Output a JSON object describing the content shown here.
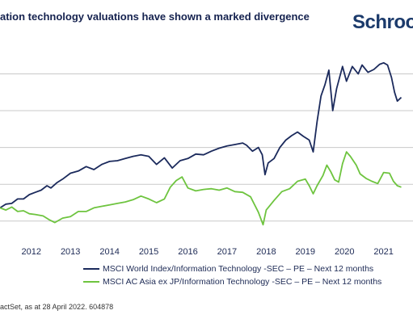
{
  "header": {
    "title": "ation technology valuations have shown a marked divergence",
    "logo_text": "Schroo"
  },
  "source": "actSet, as at 28 April 2022. 604878",
  "colors": {
    "series_world": "#1b2a5c",
    "series_asia": "#6ec43f",
    "grid": "#c9c9c9",
    "axis_text": "#1d2a55"
  },
  "chart_data": {
    "type": "line",
    "title": "",
    "xlabel": "",
    "ylabel": "",
    "x_tick_labels": [
      "2012",
      "2013",
      "2014",
      "2015",
      "2016",
      "2017",
      "2018",
      "2019",
      "2020",
      "2021"
    ],
    "xlim": [
      2011.7,
      2022.25
    ],
    "ylim": [
      8,
      34
    ],
    "gridlines_y": [
      10,
      15,
      20,
      25,
      30
    ],
    "grid": true,
    "legend_position": "bottom",
    "series": [
      {
        "name": "MSCI World Index/Information Technology -SEC – PE – Next 12 months",
        "color": "#1b2a5c",
        "points": [
          [
            2011.7,
            11.8
          ],
          [
            2011.85,
            12.3
          ],
          [
            2012.0,
            12.4
          ],
          [
            2012.15,
            13.0
          ],
          [
            2012.3,
            13.0
          ],
          [
            2012.45,
            13.6
          ],
          [
            2012.6,
            13.9
          ],
          [
            2012.75,
            14.2
          ],
          [
            2012.9,
            14.8
          ],
          [
            2013.0,
            14.5
          ],
          [
            2013.15,
            15.2
          ],
          [
            2013.3,
            15.7
          ],
          [
            2013.5,
            16.5
          ],
          [
            2013.7,
            16.8
          ],
          [
            2013.9,
            17.4
          ],
          [
            2014.1,
            17.0
          ],
          [
            2014.3,
            17.7
          ],
          [
            2014.5,
            18.1
          ],
          [
            2014.7,
            18.2
          ],
          [
            2014.9,
            18.5
          ],
          [
            2015.1,
            18.8
          ],
          [
            2015.3,
            19.0
          ],
          [
            2015.5,
            18.8
          ],
          [
            2015.7,
            17.7
          ],
          [
            2015.9,
            18.6
          ],
          [
            2016.1,
            17.2
          ],
          [
            2016.3,
            18.2
          ],
          [
            2016.5,
            18.5
          ],
          [
            2016.7,
            19.1
          ],
          [
            2016.9,
            19.0
          ],
          [
            2017.1,
            19.5
          ],
          [
            2017.3,
            19.9
          ],
          [
            2017.5,
            20.2
          ],
          [
            2017.7,
            20.4
          ],
          [
            2017.9,
            20.6
          ],
          [
            2018.0,
            20.3
          ],
          [
            2018.15,
            19.5
          ],
          [
            2018.3,
            20.0
          ],
          [
            2018.4,
            19.0
          ],
          [
            2018.47,
            16.3
          ],
          [
            2018.55,
            17.9
          ],
          [
            2018.7,
            18.5
          ],
          [
            2018.85,
            20.0
          ],
          [
            2019.0,
            21.0
          ],
          [
            2019.15,
            21.6
          ],
          [
            2019.3,
            22.1
          ],
          [
            2019.45,
            21.5
          ],
          [
            2019.6,
            21.0
          ],
          [
            2019.7,
            19.4
          ],
          [
            2019.8,
            23.5
          ],
          [
            2019.9,
            27.0
          ],
          [
            2020.0,
            28.5
          ],
          [
            2020.1,
            30.5
          ],
          [
            2020.2,
            25.0
          ],
          [
            2020.3,
            28.0
          ],
          [
            2020.45,
            31.0
          ],
          [
            2020.55,
            29.0
          ],
          [
            2020.7,
            31.0
          ],
          [
            2020.85,
            30.0
          ],
          [
            2020.95,
            31.2
          ],
          [
            2021.1,
            30.2
          ],
          [
            2021.25,
            30.6
          ],
          [
            2021.4,
            31.3
          ],
          [
            2021.5,
            31.5
          ],
          [
            2021.6,
            31.2
          ],
          [
            2021.7,
            29.5
          ],
          [
            2021.78,
            27.5
          ],
          [
            2021.85,
            26.3
          ],
          [
            2021.95,
            26.8
          ]
        ]
      },
      {
        "name": "MSCI AC Asia ex JP/Information Technology -SEC – PE – Next 12 months",
        "color": "#6ec43f",
        "points": [
          [
            2011.7,
            11.8
          ],
          [
            2011.85,
            11.5
          ],
          [
            2012.0,
            11.9
          ],
          [
            2012.15,
            11.3
          ],
          [
            2012.3,
            11.4
          ],
          [
            2012.45,
            11.0
          ],
          [
            2012.6,
            10.9
          ],
          [
            2012.8,
            10.7
          ],
          [
            2012.95,
            10.2
          ],
          [
            2013.1,
            9.8
          ],
          [
            2013.3,
            10.4
          ],
          [
            2013.5,
            10.6
          ],
          [
            2013.7,
            11.3
          ],
          [
            2013.9,
            11.3
          ],
          [
            2014.1,
            11.8
          ],
          [
            2014.3,
            12.0
          ],
          [
            2014.5,
            12.2
          ],
          [
            2014.7,
            12.4
          ],
          [
            2014.9,
            12.6
          ],
          [
            2015.1,
            12.9
          ],
          [
            2015.3,
            13.4
          ],
          [
            2015.5,
            13.0
          ],
          [
            2015.7,
            12.5
          ],
          [
            2015.9,
            13.0
          ],
          [
            2016.05,
            14.6
          ],
          [
            2016.2,
            15.5
          ],
          [
            2016.35,
            16.0
          ],
          [
            2016.5,
            14.5
          ],
          [
            2016.7,
            14.1
          ],
          [
            2016.9,
            14.3
          ],
          [
            2017.1,
            14.4
          ],
          [
            2017.3,
            14.2
          ],
          [
            2017.5,
            14.5
          ],
          [
            2017.7,
            14.0
          ],
          [
            2017.9,
            13.9
          ],
          [
            2018.1,
            13.3
          ],
          [
            2018.3,
            11.2
          ],
          [
            2018.42,
            9.5
          ],
          [
            2018.5,
            11.5
          ],
          [
            2018.7,
            12.8
          ],
          [
            2018.9,
            14.0
          ],
          [
            2019.1,
            14.4
          ],
          [
            2019.3,
            15.4
          ],
          [
            2019.5,
            15.7
          ],
          [
            2019.6,
            14.8
          ],
          [
            2019.7,
            13.7
          ],
          [
            2019.8,
            14.8
          ],
          [
            2019.95,
            16.2
          ],
          [
            2020.05,
            17.6
          ],
          [
            2020.15,
            16.7
          ],
          [
            2020.25,
            15.6
          ],
          [
            2020.35,
            15.3
          ],
          [
            2020.45,
            17.8
          ],
          [
            2020.55,
            19.4
          ],
          [
            2020.65,
            18.8
          ],
          [
            2020.8,
            17.6
          ],
          [
            2020.9,
            16.4
          ],
          [
            2021.05,
            15.8
          ],
          [
            2021.2,
            15.4
          ],
          [
            2021.35,
            15.1
          ],
          [
            2021.5,
            16.6
          ],
          [
            2021.65,
            16.5
          ],
          [
            2021.75,
            15.4
          ],
          [
            2021.85,
            14.8
          ],
          [
            2021.95,
            14.6
          ]
        ]
      }
    ]
  },
  "legend": {
    "items": [
      "MSCI World Index/Information Technology -SEC – PE – Next 12 months",
      "MSCI AC Asia ex JP/Information Technology -SEC – PE – Next 12 months"
    ]
  }
}
